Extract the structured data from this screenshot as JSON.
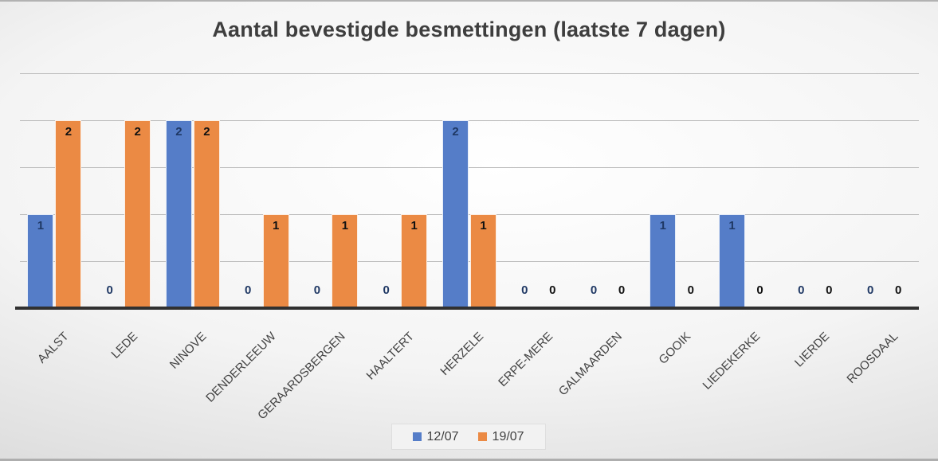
{
  "title": "Aantal bevestigde besmettingen (laatste 7 dagen)",
  "chart_data": {
    "type": "bar",
    "title": "Aantal bevestigde besmettingen (laatste 7 dagen)",
    "categories": [
      "AALST",
      "LEDE",
      "NINOVE",
      "DENDERLEEUW",
      "GERAARDSBERGEN",
      "HAALTERT",
      "HERZELE",
      "ERPE-MERE",
      "GALMAARDEN",
      "GOOIK",
      "LIEDEKERKE",
      "LIERDE",
      "ROOSDAAL"
    ],
    "series": [
      {
        "name": "12/07",
        "color": "#557DC8",
        "label_color": "#1F3864",
        "values": [
          1,
          0,
          2,
          0,
          0,
          0,
          2,
          0,
          0,
          1,
          1,
          0,
          0
        ]
      },
      {
        "name": "19/07",
        "color": "#EB8A44",
        "label_color": "#111111",
        "values": [
          2,
          2,
          2,
          1,
          1,
          1,
          1,
          0,
          0,
          0,
          0,
          0,
          0
        ]
      }
    ],
    "xlabel": "",
    "ylabel": "",
    "ylim": [
      0,
      2.5
    ],
    "gridline_step": 0.5,
    "grid": "horizontal",
    "data_labels": "inside_end",
    "legend_position": "bottom"
  },
  "style_colors": {
    "gridline": "#bdbdbd",
    "axis": "#303030",
    "title_text": "#3e3e3e",
    "axis_label_text": "#424242",
    "legend_bg": "#f2f2f2"
  }
}
